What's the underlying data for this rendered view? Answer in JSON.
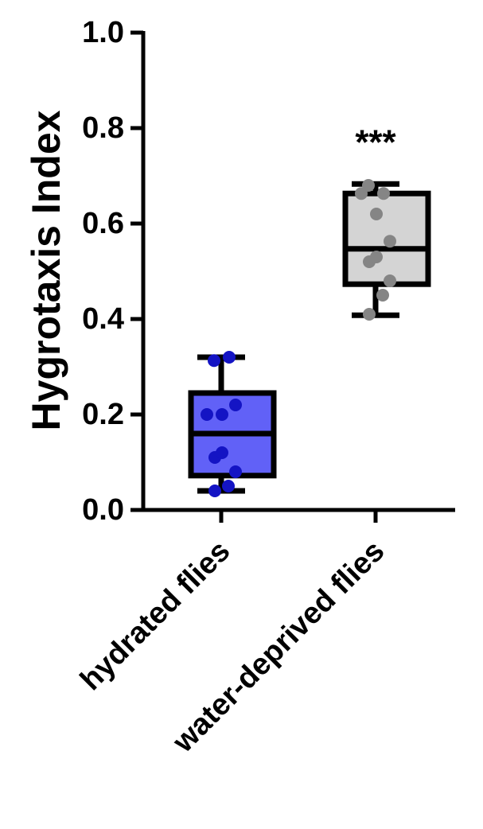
{
  "chart_data": {
    "type": "box",
    "ylabel": "Hygrotaxis Index",
    "annotation": "***",
    "categories": [
      "hydrated flies",
      "water-deprived flies"
    ],
    "ylim": [
      0,
      1
    ],
    "yticks": [
      {
        "value": 0,
        "label": "0.0"
      },
      0.2,
      0.4,
      0.6,
      0.8,
      {
        "value": 1,
        "label": "1.0"
      }
    ],
    "boxes": [
      {
        "fill": "#6161f7",
        "point_color": "#1414c4",
        "whisker_low": 0.04,
        "q1": 0.072,
        "median": 0.16,
        "q3": 0.245,
        "whisker_high": 0.32,
        "points": [
          0.313,
          0.32,
          0.2,
          0.2,
          0.22,
          0.11,
          0.12,
          0.08,
          0.05,
          0.04
        ]
      },
      {
        "fill": "#d4d4d4",
        "point_color": "#858585",
        "whisker_low": 0.408,
        "q1": 0.473,
        "median": 0.547,
        "q3": 0.663,
        "whisker_high": 0.683,
        "points": [
          0.68,
          0.663,
          0.663,
          0.62,
          0.563,
          0.52,
          0.53,
          0.48,
          0.45,
          0.41
        ]
      }
    ]
  }
}
